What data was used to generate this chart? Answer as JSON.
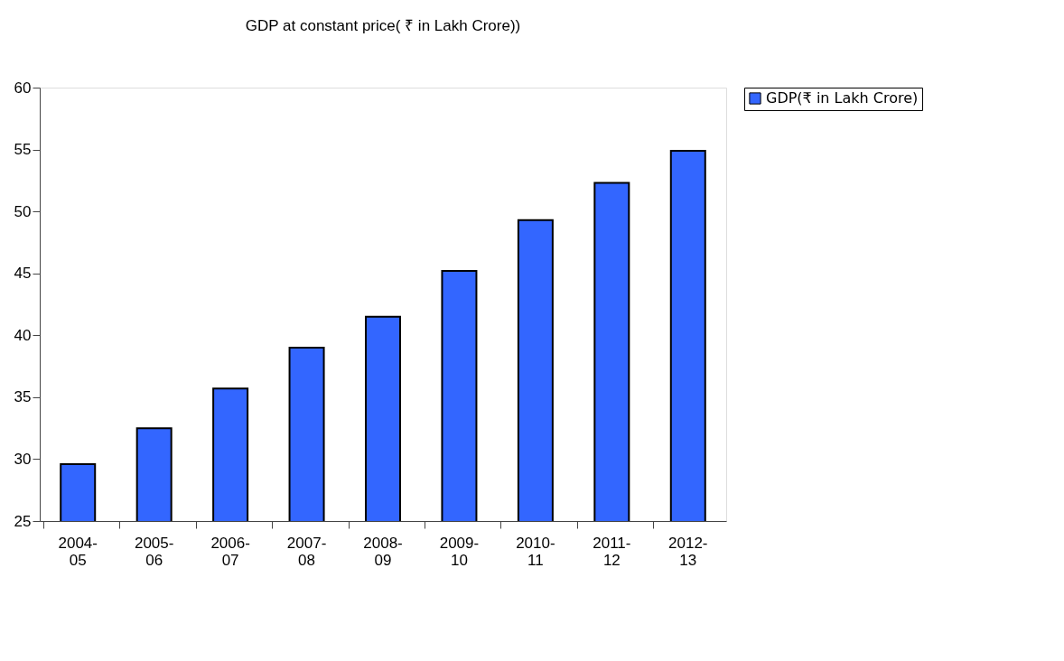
{
  "chart_data": {
    "type": "bar",
    "title": "GDP at constant price( ₹ in Lakh Crore))",
    "categories": [
      "2004-05",
      "2005-06",
      "2006-07",
      "2007-08",
      "2008-09",
      "2009-10",
      "2010-11",
      "2011-12",
      "2012-13"
    ],
    "series": [
      {
        "name": "GDP(₹ in Lakh Crore)",
        "color": "#3366ff",
        "values": [
          29.6,
          32.5,
          35.7,
          39.0,
          41.5,
          45.2,
          49.3,
          52.3,
          54.9
        ]
      }
    ],
    "ylim": [
      25,
      60
    ],
    "yticks": [
      25,
      30,
      35,
      40,
      45,
      50,
      55,
      60
    ],
    "grid": false,
    "legend": "right"
  }
}
